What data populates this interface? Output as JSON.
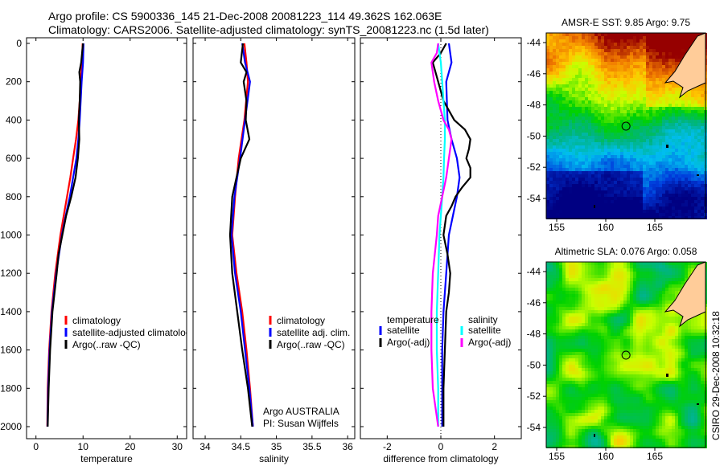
{
  "title_line1": "Argo profile: CS 5900336_145 21-Dec-2008 20081223_114 49.362S 162.063E",
  "title_line2": "Climatology: CARS2006. Satellite-adjusted climatology: synTS_20081223.nc (1.5d later)",
  "credit": "CSIRO 29-Dec-2008 10:32:18",
  "chart_data": [
    {
      "type": "line",
      "xlabel": "temperature",
      "xlim": [
        -2,
        32
      ],
      "ylim": [
        2000,
        0
      ],
      "xticks": [
        0,
        10,
        20,
        30
      ],
      "yticks": [
        0,
        200,
        400,
        600,
        800,
        1000,
        1200,
        1400,
        1600,
        1800,
        2000
      ],
      "legend": [
        "climatology",
        "satellite-adjusted climatology",
        "Argo(..raw -QC)"
      ],
      "legend_placement": "lower-right",
      "series": [
        {
          "name": "climatology",
          "color": "#ff0000",
          "depth": [
            0,
            100,
            200,
            300,
            400,
            500,
            600,
            700,
            800,
            900,
            1000,
            1200,
            1400,
            1600,
            1800,
            2000
          ],
          "values": [
            9.9,
            9.8,
            9.5,
            9.3,
            9.0,
            8.5,
            7.9,
            7.3,
            6.6,
            5.9,
            5.2,
            4.1,
            3.3,
            2.8,
            2.5,
            2.4
          ]
        },
        {
          "name": "satellite-adjusted climatology",
          "color": "#0000ff",
          "depth": [
            0,
            100,
            200,
            300,
            400,
            500,
            600,
            700,
            800,
            900,
            1000,
            1200,
            1400,
            1600,
            1800,
            2000
          ],
          "values": [
            10.1,
            10.0,
            9.7,
            9.5,
            9.3,
            9.0,
            8.6,
            7.9,
            7.2,
            6.3,
            5.5,
            4.3,
            3.4,
            2.9,
            2.6,
            2.45
          ]
        },
        {
          "name": "Argo(..raw -QC)",
          "color": "#000000",
          "depth": [
            0,
            100,
            150,
            200,
            300,
            400,
            500,
            600,
            700,
            800,
            900,
            1000,
            1100,
            1200,
            1400,
            1600,
            1800,
            2000
          ],
          "values": [
            10.0,
            9.6,
            9.2,
            9.4,
            9.3,
            9.1,
            9.2,
            8.9,
            8.4,
            7.5,
            6.4,
            5.6,
            4.8,
            4.4,
            3.5,
            3.0,
            2.7,
            2.5
          ]
        }
      ]
    },
    {
      "type": "line",
      "xlabel": "salinity",
      "xlim": [
        33.83,
        36.1
      ],
      "ylim": [
        2000,
        0
      ],
      "xticks": [
        34,
        34.5,
        35,
        35.5,
        36
      ],
      "legend": [
        "climatology",
        "satellite adj. clim.",
        "Argo(..raw -QC)"
      ],
      "legend_placement": "lower-right",
      "annotation": [
        "Argo AUSTRALIA",
        "PI: Susan Wijffels"
      ],
      "series": [
        {
          "name": "climatology",
          "color": "#ff0000",
          "depth": [
            0,
            100,
            200,
            400,
            600,
            800,
            1000,
            1200,
            1400,
            1600,
            1800,
            2000
          ],
          "values": [
            34.55,
            34.58,
            34.6,
            34.55,
            34.47,
            34.42,
            34.38,
            34.44,
            34.52,
            34.58,
            34.63,
            34.67
          ]
        },
        {
          "name": "satellite adj. clim.",
          "color": "#0000ff",
          "depth": [
            0,
            100,
            200,
            400,
            600,
            800,
            1000,
            1200,
            1400,
            1600,
            1800,
            2000
          ],
          "values": [
            34.52,
            34.56,
            34.63,
            34.56,
            34.49,
            34.41,
            34.37,
            34.42,
            34.5,
            34.56,
            34.62,
            34.67
          ]
        },
        {
          "name": "Argo(..raw -QC)",
          "color": "#000000",
          "depth": [
            0,
            100,
            150,
            200,
            300,
            400,
            500,
            600,
            700,
            800,
            1000,
            1200,
            1400,
            1600,
            1800,
            2000
          ],
          "values": [
            34.53,
            34.5,
            34.58,
            34.54,
            34.58,
            34.57,
            34.62,
            34.5,
            34.44,
            34.38,
            34.35,
            34.38,
            34.45,
            34.52,
            34.6,
            34.66
          ]
        }
      ]
    },
    {
      "type": "line",
      "xlabel": "difference from climatology",
      "xlim": [
        -3,
        3
      ],
      "ylim": [
        2000,
        0
      ],
      "xticks": [
        -2,
        0,
        2
      ],
      "legend_headers": [
        "temperature",
        "salinity"
      ],
      "legend": [
        "satellite",
        "Argo(-adj)",
        "satellite",
        "Argo(-adj)"
      ],
      "legend_placement": "lower-center",
      "series": [
        {
          "name": "temperature satellite",
          "color": "#0000ff",
          "depth": [
            0,
            100,
            200,
            400,
            500,
            600,
            700,
            800,
            900,
            1000,
            1200,
            1400,
            1600,
            1800,
            2000
          ],
          "values": [
            0.3,
            0.4,
            0.2,
            0.25,
            0.4,
            0.6,
            0.7,
            0.6,
            0.45,
            0.3,
            0.2,
            0.1,
            0.05,
            0.05,
            0.05
          ]
        },
        {
          "name": "temperature Argo(-adj)",
          "color": "#000000",
          "depth": [
            0,
            50,
            100,
            200,
            300,
            400,
            450,
            500,
            550,
            600,
            650,
            700,
            750,
            800,
            850,
            900,
            1000,
            1100,
            1200,
            1300,
            1400,
            1600,
            1800,
            2000
          ],
          "values": [
            0.2,
            0.0,
            -0.3,
            -0.1,
            0.1,
            0.5,
            0.9,
            1.1,
            1.05,
            0.95,
            1.1,
            1.1,
            0.8,
            0.55,
            0.4,
            0.2,
            0.1,
            0.25,
            0.35,
            0.3,
            0.2,
            0.15,
            0.1,
            0.1
          ]
        },
        {
          "name": "salinity satellite",
          "color": "#00ffff",
          "depth": [
            0,
            50,
            100,
            200,
            300,
            400,
            500,
            600,
            700,
            800,
            900,
            1000,
            1200,
            1400,
            1600,
            1800,
            2000
          ],
          "values": [
            -0.1,
            -0.05,
            0.0,
            0.05,
            0.1,
            0.15,
            0.15,
            0.12,
            0.1,
            0.05,
            0.0,
            -0.05,
            -0.1,
            -0.15,
            -0.15,
            -0.1,
            -0.1
          ]
        },
        {
          "name": "salinity Argo(-adj)",
          "color": "#ff00ff",
          "depth": [
            0,
            50,
            100,
            200,
            300,
            400,
            450,
            500,
            600,
            700,
            800,
            900,
            1000,
            1200,
            1400,
            1600,
            1800,
            2000
          ],
          "values": [
            -0.1,
            -0.15,
            -0.35,
            -0.25,
            -0.1,
            0.1,
            0.3,
            0.4,
            0.3,
            0.2,
            0.05,
            -0.1,
            -0.15,
            -0.3,
            -0.35,
            -0.35,
            -0.3,
            -0.1
          ]
        }
      ]
    }
  ],
  "maps": [
    {
      "title": "AMSR-E SST: 9.85 Argo: 9.75",
      "kind": "sst",
      "lon_ticks": [
        155,
        160,
        165
      ],
      "lat_ticks": [
        -44,
        -46,
        -48,
        -50,
        -52,
        -54
      ],
      "argo_lon": 162.063,
      "argo_lat": -49.362
    },
    {
      "title": "Altimetric SLA: 0.076 Argo: 0.058",
      "kind": "sla",
      "lon_ticks": [
        155,
        160,
        165
      ],
      "lat_ticks": [
        -44,
        -46,
        -48,
        -50,
        -52,
        -54
      ],
      "argo_lon": 162.063,
      "argo_lat": -49.362
    }
  ],
  "colors": {
    "land": "#ffcc99"
  }
}
